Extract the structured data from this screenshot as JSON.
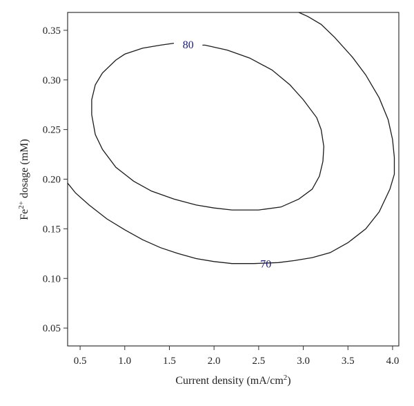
{
  "chart_data": {
    "type": "contour",
    "title": "",
    "xlabel": "Current density (mA/cm",
    "xlabel_sup": "2",
    "xlabel_suffix": ")",
    "ylabel_prefix": "Fe",
    "ylabel_sup": "2+",
    "ylabel_suffix": " dosage (mM)",
    "xlim": [
      0.36,
      4.07
    ],
    "ylim": [
      0.032,
      0.368
    ],
    "xticks": [
      0.5,
      1.0,
      1.5,
      2.0,
      2.5,
      3.0,
      3.5,
      4.0
    ],
    "xtick_labels": [
      "0.5",
      "1.0",
      "1.5",
      "2.0",
      "2.5",
      "3.0",
      "3.5",
      "4.0"
    ],
    "yticks": [
      0.05,
      0.1,
      0.15,
      0.2,
      0.25,
      0.3,
      0.35
    ],
    "ytick_labels": [
      "0.05",
      "0.10",
      "0.15",
      "0.20",
      "0.25",
      "0.30",
      "0.35"
    ],
    "grid": false,
    "line_color": "#1a1a1a",
    "label_color": "#1a1a6e",
    "contours": [
      {
        "level": "80",
        "closed": true,
        "label_at": [
          1.71,
          0.336
        ],
        "points": [
          [
            1.55,
            0.337
          ],
          [
            1.4,
            0.335
          ],
          [
            1.2,
            0.332
          ],
          [
            1.0,
            0.326
          ],
          [
            0.9,
            0.32
          ],
          [
            0.75,
            0.307
          ],
          [
            0.67,
            0.295
          ],
          [
            0.63,
            0.28
          ],
          [
            0.63,
            0.265
          ],
          [
            0.67,
            0.245
          ],
          [
            0.75,
            0.23
          ],
          [
            0.9,
            0.212
          ],
          [
            1.1,
            0.198
          ],
          [
            1.3,
            0.188
          ],
          [
            1.55,
            0.18
          ],
          [
            1.8,
            0.174
          ],
          [
            2.0,
            0.171
          ],
          [
            2.2,
            0.169
          ],
          [
            2.5,
            0.169
          ],
          [
            2.75,
            0.172
          ],
          [
            2.95,
            0.18
          ],
          [
            3.1,
            0.19
          ],
          [
            3.18,
            0.203
          ],
          [
            3.22,
            0.218
          ],
          [
            3.23,
            0.233
          ],
          [
            3.2,
            0.25
          ],
          [
            3.15,
            0.262
          ],
          [
            3.0,
            0.28
          ],
          [
            2.85,
            0.295
          ],
          [
            2.65,
            0.31
          ],
          [
            2.4,
            0.322
          ],
          [
            2.15,
            0.33
          ],
          [
            1.9,
            0.335
          ],
          [
            1.87,
            0.335
          ]
        ]
      },
      {
        "level": "70",
        "closed": false,
        "label_at": [
          2.58,
          0.115
        ],
        "points": [
          [
            0.36,
            0.196
          ],
          [
            0.45,
            0.186
          ],
          [
            0.6,
            0.174
          ],
          [
            0.8,
            0.16
          ],
          [
            1.0,
            0.149
          ],
          [
            1.2,
            0.139
          ],
          [
            1.4,
            0.131
          ],
          [
            1.6,
            0.125
          ],
          [
            1.8,
            0.12
          ],
          [
            2.0,
            0.117
          ],
          [
            2.2,
            0.115
          ],
          [
            2.4,
            0.115
          ],
          [
            2.45,
            0.115
          ],
          [
            2.72,
            0.116
          ],
          [
            2.9,
            0.118
          ],
          [
            3.1,
            0.121
          ],
          [
            3.3,
            0.126
          ],
          [
            3.5,
            0.136
          ],
          [
            3.7,
            0.15
          ],
          [
            3.85,
            0.167
          ],
          [
            3.97,
            0.19
          ],
          [
            4.02,
            0.205
          ],
          [
            4.02,
            0.222
          ],
          [
            4.0,
            0.24
          ],
          [
            3.95,
            0.26
          ],
          [
            3.85,
            0.282
          ],
          [
            3.7,
            0.305
          ],
          [
            3.55,
            0.323
          ],
          [
            3.35,
            0.343
          ],
          [
            3.2,
            0.356
          ],
          [
            3.05,
            0.364
          ],
          [
            2.95,
            0.368
          ]
        ]
      }
    ]
  }
}
